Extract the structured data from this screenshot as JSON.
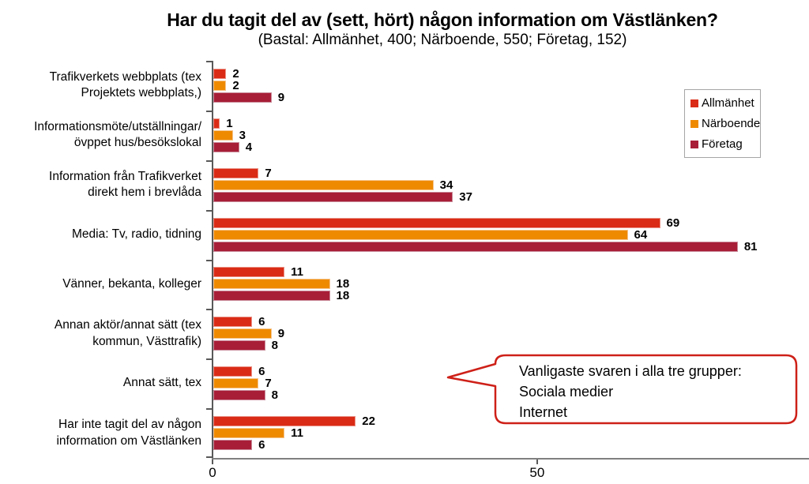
{
  "title": "Har du tagit del av (sett, hört) någon information om Västlänken?",
  "subtitle": "(Bastal: Allmänhet, 400; Närboende, 550; Företag, 152)",
  "colors": {
    "allmanhet": "#DA2B16",
    "allmanhet_border": "#EA9084",
    "narboende": "#EE8A00",
    "narboende_border": "#F6C48C",
    "foretag": "#A81E37",
    "foretag_border": "#C98A99",
    "axis": "#595959",
    "callout_border": "#CE2018",
    "legend_border": "#A6A6A6",
    "text": "#000000"
  },
  "callout": {
    "lines": [
      "Vanligaste svaren i alla tre grupper:",
      "Sociala medier",
      "Internet"
    ]
  },
  "chart_data": {
    "type": "bar",
    "orientation": "horizontal",
    "title": "Har du tagit del av (sett, hört) någon information om Västlänken?",
    "subtitle": "(Bastal: Allmänhet, 400; Närboende, 550; Företag, 152)",
    "categories": [
      "Trafikverkets webbplats (tex\nProjektets webbplats,)",
      "Informationsmöte/utställningar/\növppet hus/besökslokal",
      "Information från Trafikverket\ndirekt hem i brevlåda",
      "Media: Tv, radio, tidning",
      "Vänner, bekanta, kolleger",
      "Annan aktör/annat sätt (tex\nkommun, Västtrafik)",
      "Annat sätt, tex",
      "Har inte tagit del av någon\ninformation om Västlänken"
    ],
    "series": [
      {
        "name": "Allmänhet",
        "color": "#DA2B16",
        "border": "#EA9084",
        "values": [
          2,
          1,
          7,
          69,
          11,
          6,
          6,
          22
        ]
      },
      {
        "name": "Närboende",
        "color": "#EE8A00",
        "border": "#F6C48C",
        "values": [
          2,
          3,
          34,
          64,
          18,
          9,
          7,
          11
        ]
      },
      {
        "name": "Företag",
        "color": "#A81E37",
        "border": "#C98A99",
        "values": [
          9,
          4,
          37,
          81,
          18,
          8,
          8,
          6
        ]
      }
    ],
    "xlim": [
      0,
      92
    ],
    "x_ticks": [
      0,
      50
    ],
    "x_tick_labels": [
      "0",
      "50"
    ],
    "grid": false,
    "legend_position": "top-right",
    "value_labels": true
  }
}
